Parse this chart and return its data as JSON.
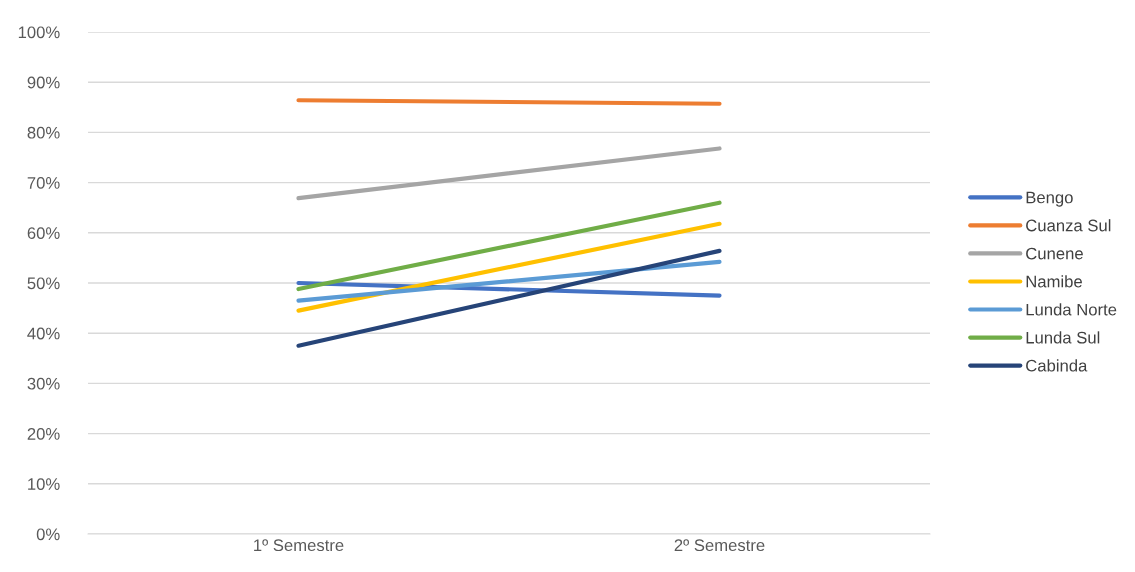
{
  "chart_data": {
    "type": "line",
    "categories": [
      "1º Semestre",
      "2º Semestre"
    ],
    "series": [
      {
        "name": "Bengo",
        "color": "#4472c4",
        "values": [
          50.0,
          47.5
        ]
      },
      {
        "name": "Cuanza Sul",
        "color": "#ed7d31",
        "values": [
          86.4,
          85.7
        ]
      },
      {
        "name": "Cunene",
        "color": "#a5a5a5",
        "values": [
          66.9,
          76.8
        ]
      },
      {
        "name": "Namibe",
        "color": "#ffc000",
        "values": [
          44.5,
          61.8
        ]
      },
      {
        "name": "Lunda Norte",
        "color": "#5b9bd5",
        "values": [
          46.5,
          54.2
        ]
      },
      {
        "name": "Lunda Sul",
        "color": "#70ad47",
        "values": [
          48.8,
          66.0
        ]
      },
      {
        "name": "Cabinda",
        "color": "#264478",
        "values": [
          37.5,
          56.4
        ]
      }
    ],
    "ylim": [
      0,
      100
    ],
    "yticks": [
      {
        "value": 0,
        "label": "0%"
      },
      {
        "value": 10,
        "label": "10%"
      },
      {
        "value": 20,
        "label": "20%"
      },
      {
        "value": 30,
        "label": "30%"
      },
      {
        "value": 40,
        "label": "40%"
      },
      {
        "value": 50,
        "label": "50%"
      },
      {
        "value": 60,
        "label": "60%"
      },
      {
        "value": 70,
        "label": "70%"
      },
      {
        "value": 80,
        "label": "80%"
      },
      {
        "value": 90,
        "label": "90%"
      },
      {
        "value": 100,
        "label": "100%"
      }
    ],
    "grid": "y",
    "legend": "right",
    "marker": "none",
    "line_style": "solid"
  }
}
